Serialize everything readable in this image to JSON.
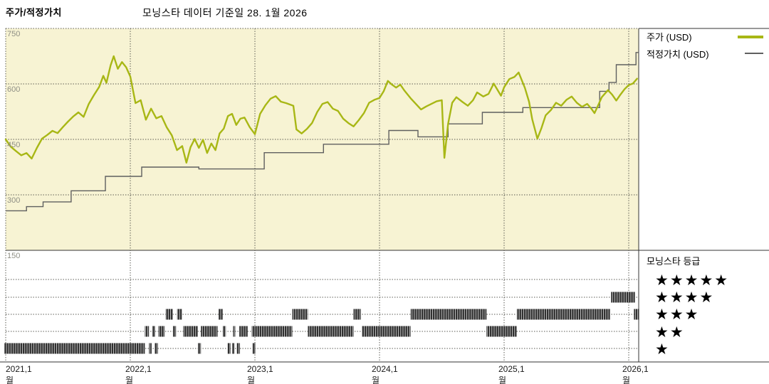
{
  "header": {
    "title_left": "주가/적정가치",
    "title_center": "모닝스타 데이터 기준일 28. 1월 2026"
  },
  "legend": {
    "price_label": "주가 (USD)",
    "fair_value_label": "적정가치 (USD)"
  },
  "rating_legend": {
    "title": "모닝스타 등급",
    "star_char": "★",
    "levels": [
      5,
      4,
      3,
      2,
      1
    ]
  },
  "colors": {
    "price": "#a8b715",
    "fair_value": "#5f5f5f",
    "plot_bg": "#f7f3d3",
    "grid": "#52524a",
    "bars": "#303030",
    "bar_gap": "#c8c8c8",
    "axis": "#333333",
    "y_tick_label": "#8f8f85",
    "x_tick_label": "#1a1a1a"
  },
  "chart_data": {
    "type": "line",
    "title": "주가/적정가치",
    "subtitle": "모닝스타 데이터 기준일 28. 1월 2026",
    "x_axis": {
      "unit": "months since 2021-01",
      "tick_labels": [
        "2021,1월",
        "2022,1월",
        "2023,1월",
        "2024,1월",
        "2025,1월",
        "2026,1월"
      ],
      "tick_months": [
        0,
        12,
        24,
        36,
        48,
        60
      ],
      "range_months": [
        0,
        61
      ]
    },
    "y_axis": {
      "ticks": [
        750,
        600,
        450,
        300,
        150
      ],
      "range": [
        150,
        750
      ],
      "grid": true
    },
    "series": [
      {
        "name": "주가 (USD)",
        "style": "line",
        "points": [
          [
            0,
            450
          ],
          [
            0.5,
            430
          ],
          [
            1,
            418
          ],
          [
            1.5,
            407
          ],
          [
            2,
            413
          ],
          [
            2.5,
            398
          ],
          [
            3,
            427
          ],
          [
            3.5,
            452
          ],
          [
            4,
            462
          ],
          [
            4.5,
            473
          ],
          [
            5,
            467
          ],
          [
            5.5,
            483
          ],
          [
            6,
            498
          ],
          [
            6.5,
            512
          ],
          [
            7,
            523
          ],
          [
            7.5,
            511
          ],
          [
            8,
            546
          ],
          [
            8.5,
            570
          ],
          [
            9,
            592
          ],
          [
            9.4,
            622
          ],
          [
            9.7,
            603
          ],
          [
            10.1,
            650
          ],
          [
            10.4,
            675
          ],
          [
            10.8,
            641
          ],
          [
            11.2,
            659
          ],
          [
            11.6,
            645
          ],
          [
            12,
            620
          ],
          [
            12.5,
            548
          ],
          [
            13,
            556
          ],
          [
            13.5,
            503
          ],
          [
            14,
            533
          ],
          [
            14.5,
            507
          ],
          [
            15,
            513
          ],
          [
            15.5,
            483
          ],
          [
            16,
            461
          ],
          [
            16.5,
            421
          ],
          [
            17,
            432
          ],
          [
            17.4,
            387
          ],
          [
            17.8,
            429
          ],
          [
            18.2,
            451
          ],
          [
            18.6,
            427
          ],
          [
            19,
            449
          ],
          [
            19.4,
            413
          ],
          [
            19.8,
            439
          ],
          [
            20.2,
            421
          ],
          [
            20.6,
            466
          ],
          [
            21,
            479
          ],
          [
            21.4,
            513
          ],
          [
            21.8,
            519
          ],
          [
            22.2,
            489
          ],
          [
            22.6,
            506
          ],
          [
            23,
            509
          ],
          [
            23.5,
            483
          ],
          [
            24,
            464
          ],
          [
            24.5,
            519
          ],
          [
            25,
            542
          ],
          [
            25.5,
            560
          ],
          [
            26,
            567
          ],
          [
            26.5,
            552
          ],
          [
            27,
            548
          ],
          [
            27.7,
            541
          ],
          [
            28,
            477
          ],
          [
            28.5,
            466
          ],
          [
            29,
            478
          ],
          [
            29.5,
            494
          ],
          [
            30,
            524
          ],
          [
            30.5,
            546
          ],
          [
            31,
            551
          ],
          [
            31.5,
            533
          ],
          [
            32,
            527
          ],
          [
            32.5,
            506
          ],
          [
            33,
            494
          ],
          [
            33.5,
            485
          ],
          [
            34,
            502
          ],
          [
            34.5,
            521
          ],
          [
            35,
            549
          ],
          [
            35.5,
            557
          ],
          [
            36,
            562
          ],
          [
            36.4,
            580
          ],
          [
            36.8,
            608
          ],
          [
            37.2,
            598
          ],
          [
            37.6,
            590
          ],
          [
            38,
            598
          ],
          [
            38.4,
            582
          ],
          [
            39,
            561
          ],
          [
            39.5,
            546
          ],
          [
            40,
            531
          ],
          [
            40.5,
            539
          ],
          [
            41,
            546
          ],
          [
            41.5,
            553
          ],
          [
            42,
            556
          ],
          [
            42.25,
            400
          ],
          [
            42.6,
            492
          ],
          [
            43,
            549
          ],
          [
            43.4,
            564
          ],
          [
            44,
            551
          ],
          [
            44.5,
            541
          ],
          [
            45,
            556
          ],
          [
            45.4,
            577
          ],
          [
            46,
            566
          ],
          [
            46.5,
            573
          ],
          [
            47,
            601
          ],
          [
            47.7,
            568
          ],
          [
            48,
            591
          ],
          [
            48.5,
            613
          ],
          [
            49,
            619
          ],
          [
            49.4,
            631
          ],
          [
            50,
            589
          ],
          [
            50.4,
            552
          ],
          [
            50.7,
            505
          ],
          [
            51.2,
            452
          ],
          [
            51.6,
            481
          ],
          [
            52,
            515
          ],
          [
            52.5,
            529
          ],
          [
            53,
            549
          ],
          [
            53.5,
            541
          ],
          [
            54,
            557
          ],
          [
            54.5,
            566
          ],
          [
            55,
            549
          ],
          [
            55.5,
            538
          ],
          [
            56,
            546
          ],
          [
            56.4,
            533
          ],
          [
            56.7,
            521
          ],
          [
            57,
            539
          ],
          [
            57.4,
            564
          ],
          [
            58,
            583
          ],
          [
            58.4,
            571
          ],
          [
            58.8,
            555
          ],
          [
            59.2,
            571
          ],
          [
            59.6,
            586
          ],
          [
            60,
            597
          ],
          [
            60.4,
            601
          ],
          [
            60.8,
            614
          ]
        ]
      },
      {
        "name": "적정가치 (USD)",
        "style": "step",
        "points": [
          [
            0,
            257
          ],
          [
            2,
            268
          ],
          [
            3.6,
            281
          ],
          [
            6.3,
            311
          ],
          [
            9.6,
            350
          ],
          [
            13.1,
            375
          ],
          [
            18.6,
            370
          ],
          [
            24.9,
            414
          ],
          [
            30.6,
            437
          ],
          [
            36.9,
            474
          ],
          [
            39.7,
            457
          ],
          [
            42.6,
            492
          ],
          [
            45.9,
            523
          ],
          [
            49.8,
            536
          ],
          [
            57.2,
            580
          ],
          [
            58.1,
            604
          ],
          [
            58.8,
            652
          ],
          [
            60.7,
            685
          ]
        ],
        "end_month": 61
      }
    ],
    "rating_timeline": {
      "rows": [
        {
          "stars": 5,
          "segments": []
        },
        {
          "stars": 4,
          "segments": [
            [
              58.3,
              60.6
            ]
          ]
        },
        {
          "stars": 3,
          "segments": [
            [
              15.4,
              16.1
            ],
            [
              16.5,
              17.0
            ],
            [
              20.5,
              20.9
            ],
            [
              27.6,
              29.1
            ],
            [
              33.5,
              34.2
            ],
            [
              39.0,
              46.3
            ],
            [
              49.2,
              58.2
            ],
            [
              60.5,
              61.0
            ]
          ]
        },
        {
          "stars": 2,
          "segments": [
            [
              13.4,
              13.8
            ],
            [
              14.1,
              14.4
            ],
            [
              14.7,
              15.3
            ],
            [
              16.1,
              16.4
            ],
            [
              17.1,
              18.5
            ],
            [
              18.8,
              20.4
            ],
            [
              20.9,
              21.2
            ],
            [
              21.9,
              22.1
            ],
            [
              22.5,
              23.3
            ],
            [
              23.7,
              27.6
            ],
            [
              29.1,
              33.5
            ],
            [
              34.3,
              39.0
            ],
            [
              46.3,
              49.2
            ]
          ]
        },
        {
          "stars": 1,
          "segments": [
            [
              -0.15,
              13.4
            ],
            [
              13.8,
              14.05
            ],
            [
              14.35,
              14.65
            ],
            [
              18.5,
              18.8
            ],
            [
              21.35,
              21.65
            ],
            [
              21.8,
              22.05
            ],
            [
              22.25,
              22.55
            ],
            [
              23.75,
              24.05
            ]
          ]
        }
      ]
    },
    "legend_position": "right"
  }
}
